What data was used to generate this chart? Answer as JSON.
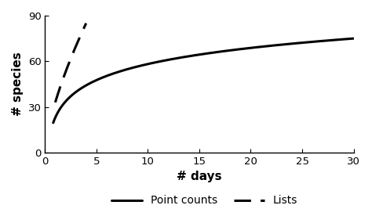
{
  "title": "",
  "xlabel": "# days",
  "ylabel": "# species",
  "xlim": [
    0,
    30
  ],
  "ylim": [
    0,
    90
  ],
  "xticks": [
    0,
    5,
    10,
    15,
    20,
    25,
    30
  ],
  "yticks": [
    0,
    30,
    60,
    90
  ],
  "point_counts": {
    "label": "Point counts",
    "linestyle": "solid",
    "color": "#000000",
    "linewidth": 2.2,
    "x_start": 0.8,
    "x_end": 30.0,
    "y_at_1": 23.0,
    "y_at_30": 75.0
  },
  "lists": {
    "label": "Lists",
    "linestyle": "dashed",
    "color": "#000000",
    "linewidth": 2.2,
    "x_start": 1.0,
    "x_end": 4.0,
    "y_at_1": 33.0,
    "y_at_4": 85.0
  },
  "legend_fontsize": 10,
  "background_color": "#ffffff",
  "axis_label_fontsize": 11
}
